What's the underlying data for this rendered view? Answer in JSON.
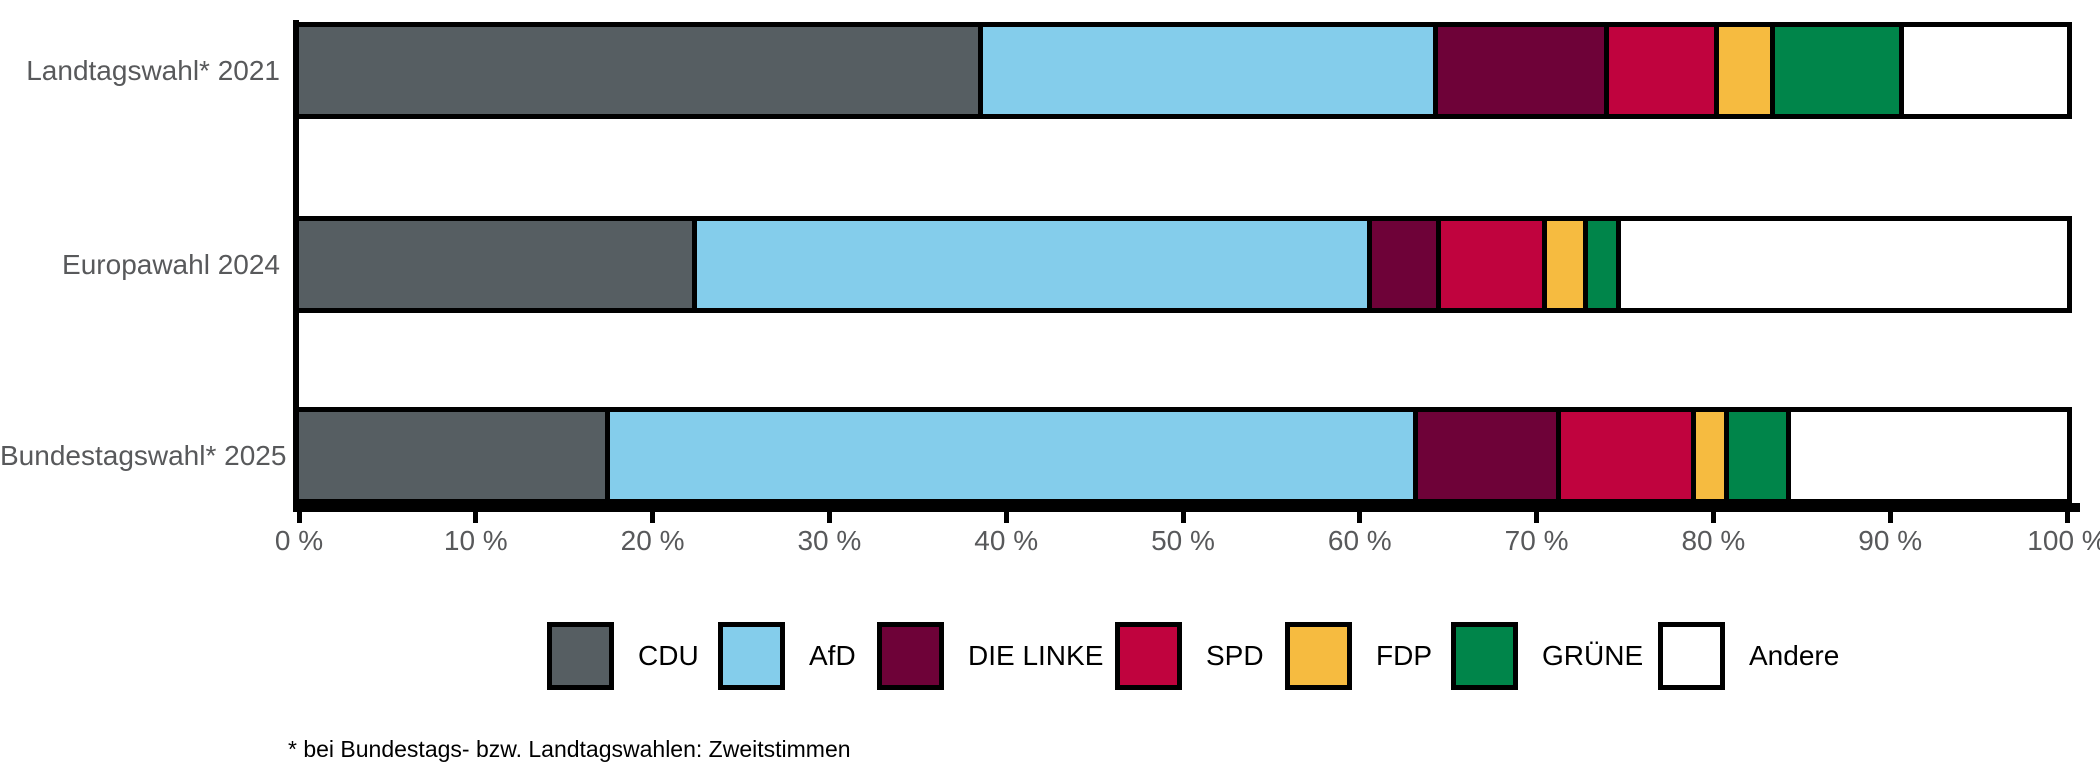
{
  "chart_data": {
    "type": "bar",
    "orientation": "horizontal",
    "stacked": true,
    "unit": "%",
    "title": "",
    "xlabel": "",
    "ylabel": "",
    "xlim": [
      0,
      100
    ],
    "grid": false,
    "legend_position": "bottom",
    "categories": [
      "Landtagswahl* 2021",
      "Europawahl 2024",
      "Bundestagswahl* 2025"
    ],
    "series": [
      {
        "name": "CDU",
        "color": "#565E62",
        "values": [
          38.7,
          22.5,
          17.6
        ]
      },
      {
        "name": "AfD",
        "color": "#84CDEB",
        "values": [
          25.7,
          38.2,
          45.7
        ]
      },
      {
        "name": "DIE LINKE",
        "color": "#6E0238",
        "values": [
          9.7,
          3.9,
          8.1
        ]
      },
      {
        "name": "SPD",
        "color": "#C0033E",
        "values": [
          6.2,
          6.0,
          7.6
        ]
      },
      {
        "name": "FDP",
        "color": "#F6BB40",
        "values": [
          3.2,
          2.3,
          1.9
        ]
      },
      {
        "name": "GRÜNE",
        "color": "#00854A",
        "values": [
          7.3,
          1.9,
          3.5
        ]
      },
      {
        "name": "Andere",
        "color": "#FFFFFF",
        "values": [
          9.2,
          25.2,
          15.6
        ]
      }
    ],
    "x_ticks": [
      "0 %",
      "10 %",
      "20 %",
      "30 %",
      "40 %",
      "50 %",
      "60 %",
      "70 %",
      "80 %",
      "90 %",
      "100 %"
    ]
  },
  "footnote": "* bei Bundestags- bzw. Landtagswahlen: Zweitstimmen",
  "colors": {
    "axis": "#000000",
    "tick_label": "#58595B",
    "category_label": "#58595B",
    "legend_label": "#000000",
    "background": "#FFFFFF"
  }
}
